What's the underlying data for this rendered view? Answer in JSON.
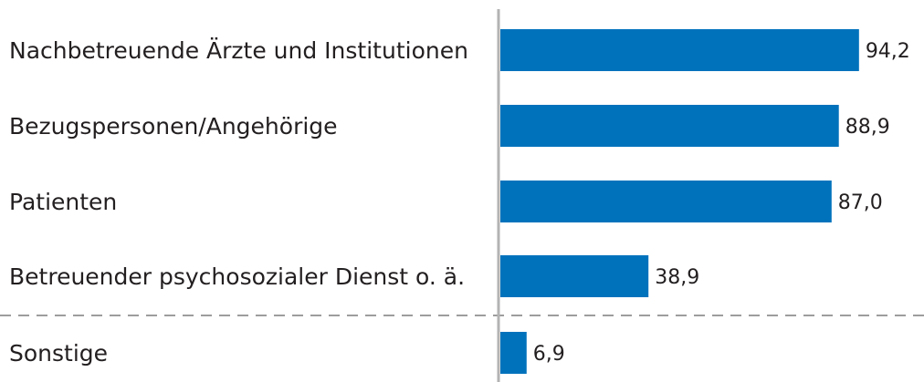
{
  "chart_data": {
    "type": "bar",
    "orientation": "horizontal",
    "categories": [
      "Nachbetreuende Ärzte und Institutionen",
      "Bezugspersonen/Angehörige",
      "Patienten",
      "Betreuender psychosozialer Dienst o. ä.",
      "Sonstige"
    ],
    "values": [
      94.2,
      88.9,
      87.0,
      38.9,
      6.9
    ],
    "value_labels": [
      "94,2",
      "88,9",
      "87,0",
      "38,9",
      "6,9"
    ],
    "color": "#0072bc",
    "xlim": [
      0,
      100
    ]
  }
}
